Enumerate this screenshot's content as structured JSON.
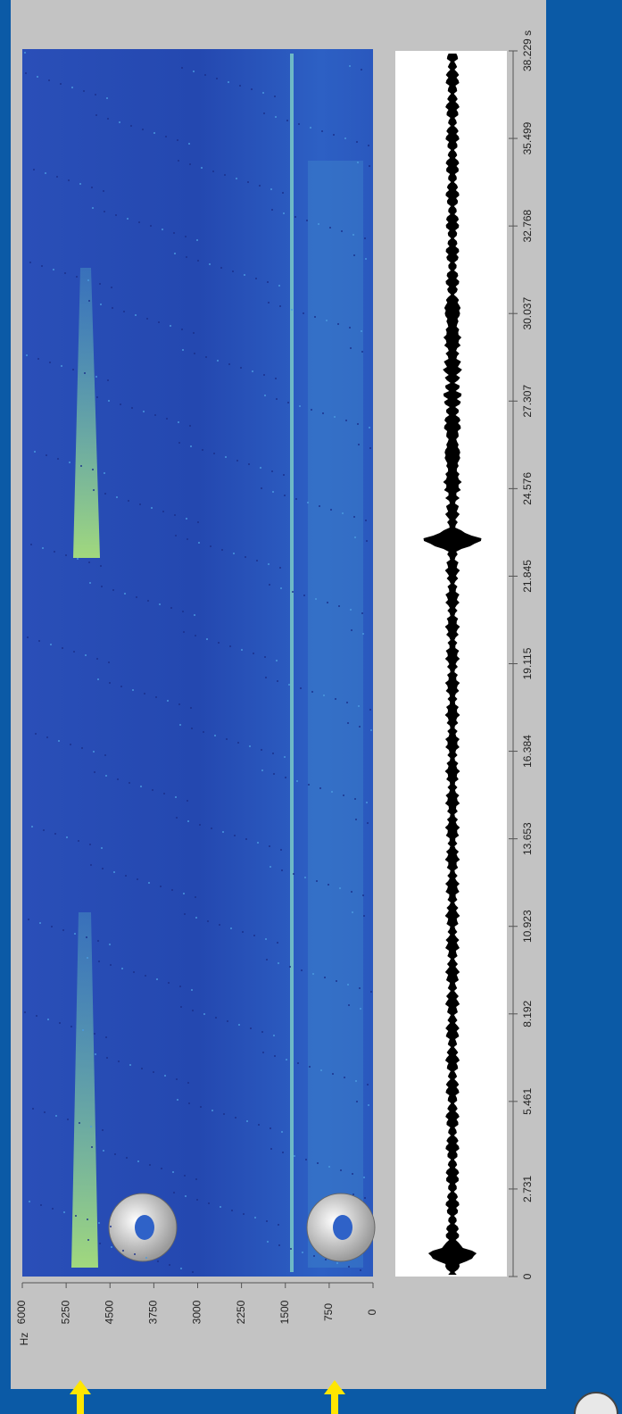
{
  "frequency_axis": {
    "unit": "Hz",
    "labels": [
      "6000",
      "5250",
      "4500",
      "3750",
      "3000",
      "2250",
      "1500",
      "750",
      "0"
    ]
  },
  "time_axis": {
    "labels": [
      "0",
      "2.731",
      "5.461",
      "8.192",
      "10.923",
      "13.653",
      "16.384",
      "19.115",
      "21.845",
      "24.576",
      "27.307",
      "30.037",
      "32.768",
      "35.499",
      "38.229 s"
    ]
  }
}
